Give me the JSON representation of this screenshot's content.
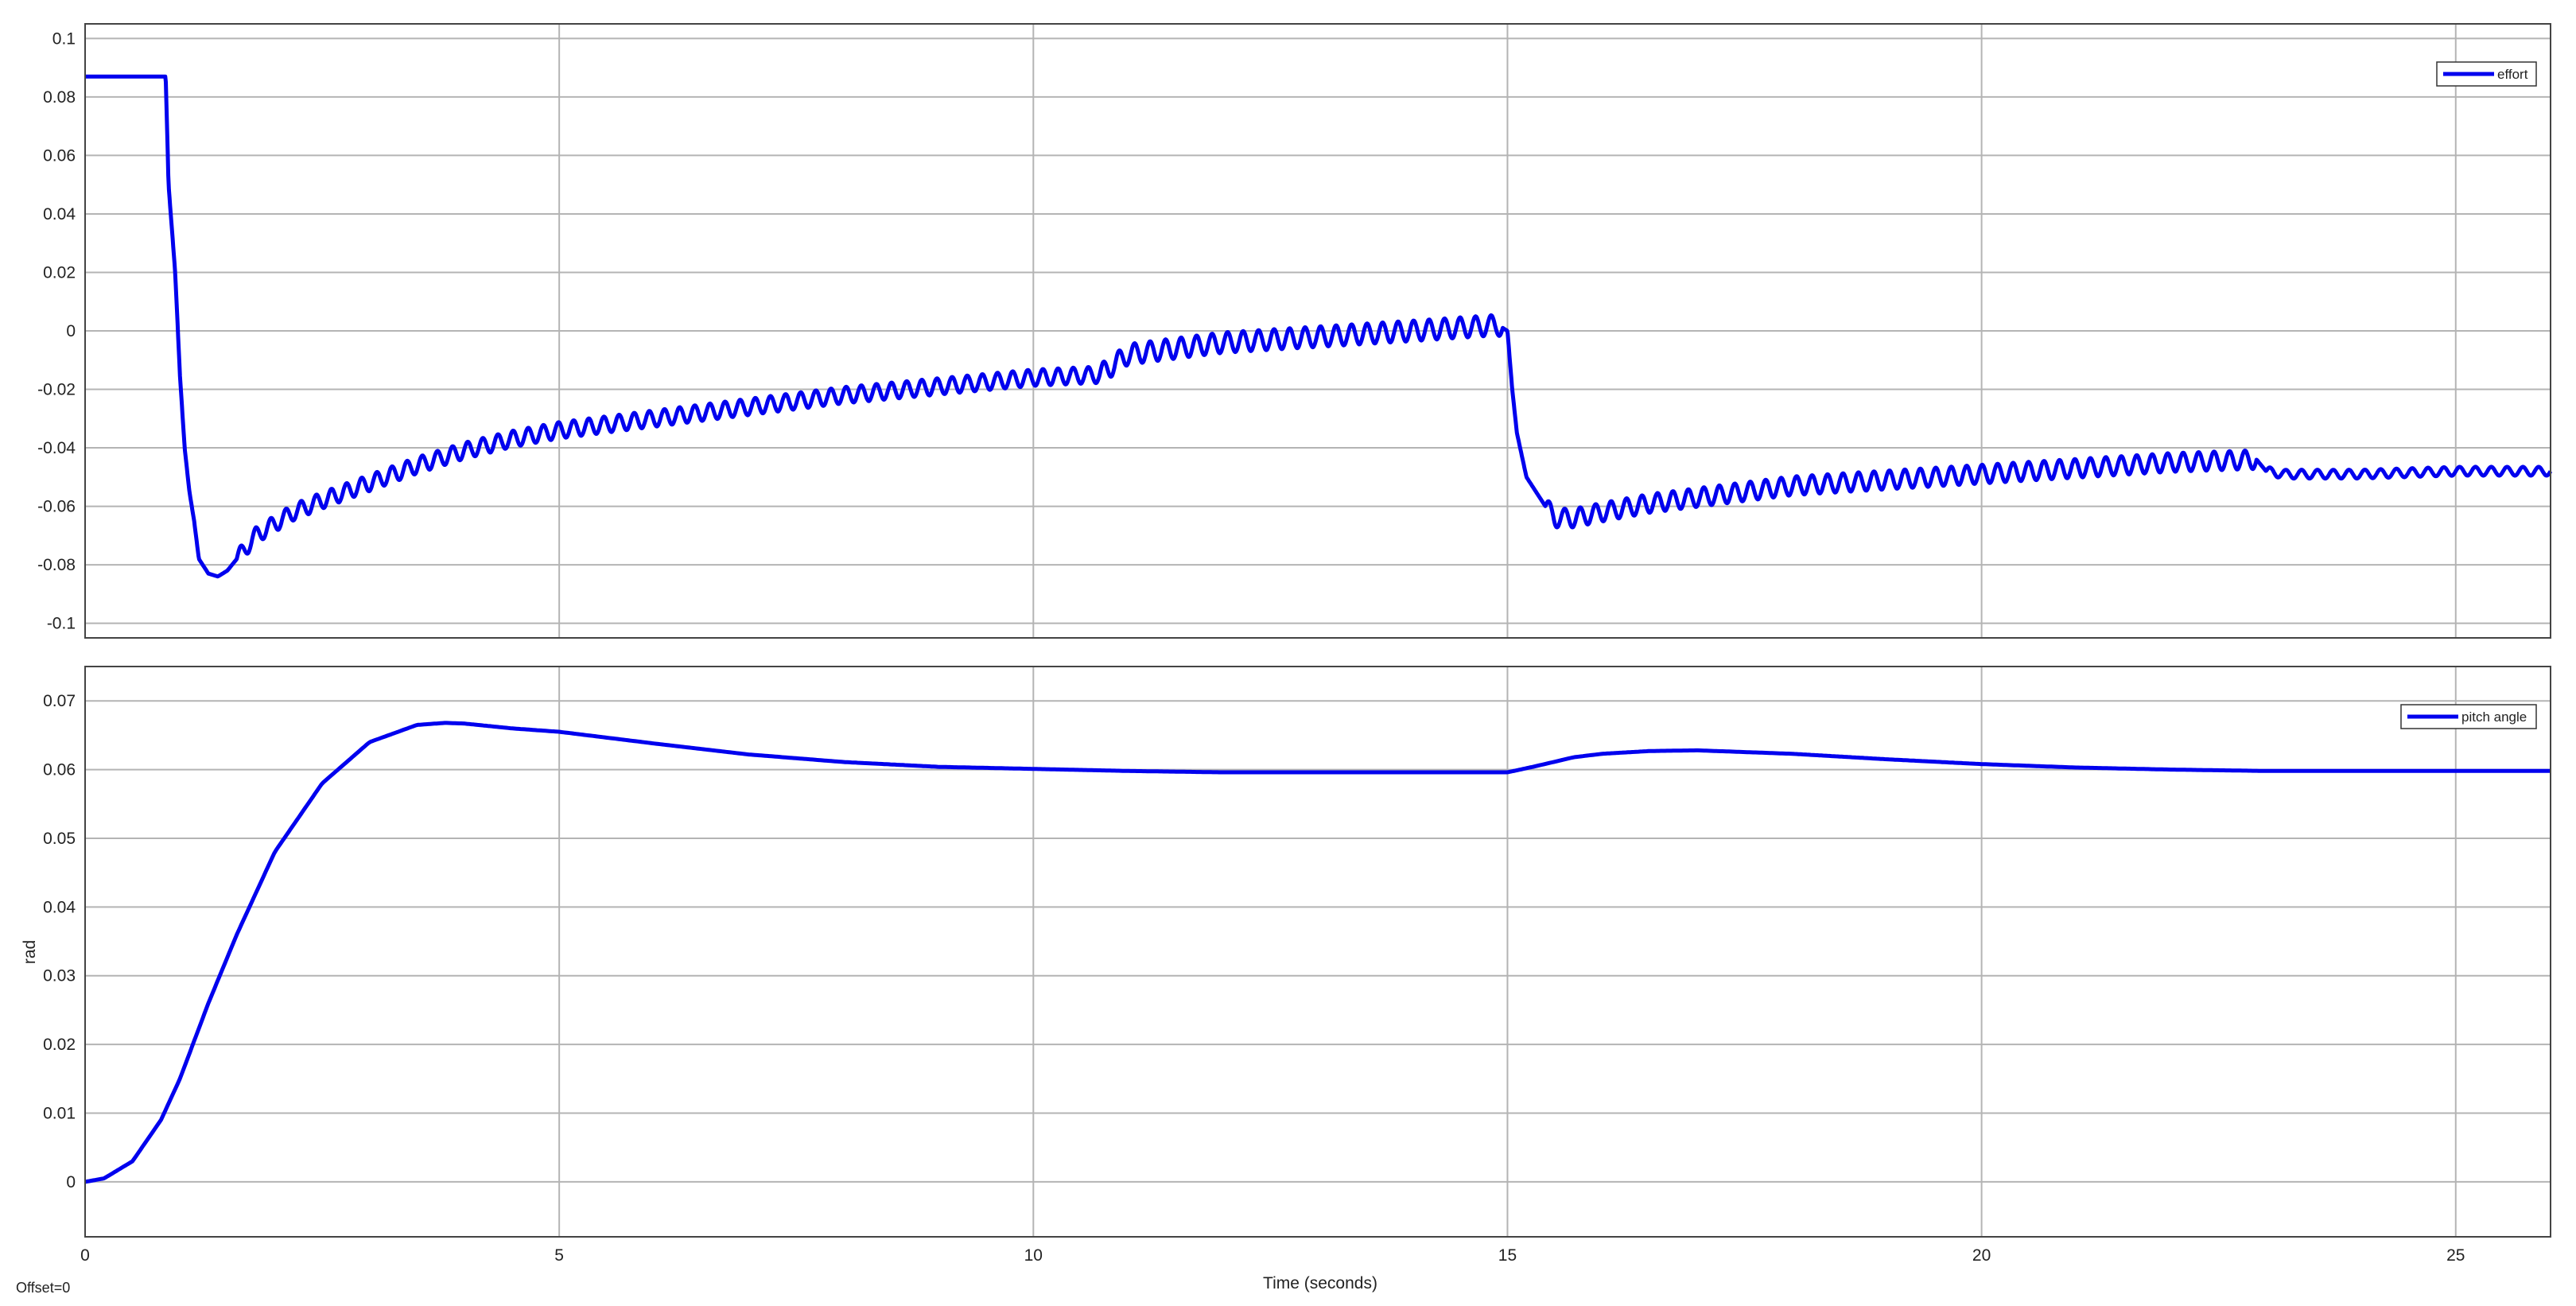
{
  "footer": {
    "offset_text": "Offset=0"
  },
  "colors": {
    "line": "#0000ee",
    "grid": "#b4b4b4",
    "axes": "#444444",
    "background": "#ffffff"
  },
  "chart_data": [
    {
      "type": "line",
      "title": "",
      "xlabel": "",
      "ylabel": "",
      "xlim": [
        0,
        26
      ],
      "ylim": [
        -0.105,
        0.105
      ],
      "xticks": [
        0,
        5,
        10,
        15,
        20,
        25
      ],
      "xtick_labels": [
        "",
        "",
        "",
        "",
        "",
        ""
      ],
      "yticks": [
        -0.1,
        -0.08,
        -0.06,
        -0.04,
        -0.02,
        0,
        0.02,
        0.04,
        0.06,
        0.08,
        0.1
      ],
      "ytick_labels": [
        "-0.1",
        "-0.08",
        "-0.06",
        "-0.04",
        "-0.02",
        "0",
        "0.02",
        "0.04",
        "0.06",
        "0.08",
        "0.1"
      ],
      "grid": true,
      "legend": "top-right",
      "series": [
        {
          "name": "effort",
          "x": [
            0,
            0.85,
            0.88,
            0.95,
            1.0,
            1.05,
            1.1,
            1.15,
            1.2,
            1.3,
            1.4,
            1.5,
            1.6,
            1.7,
            1.8,
            2.0,
            2.2,
            2.5,
            3.0,
            3.5,
            4.0,
            4.5,
            5.0,
            6.0,
            7.0,
            8.0,
            9.0,
            10.0,
            10.7,
            11.0,
            12.0,
            13.0,
            14.0,
            14.9,
            15.0,
            15.05,
            15.1,
            15.2,
            15.3,
            15.4,
            15.5,
            15.7,
            16.0,
            16.5,
            17.0,
            18.0,
            19.0,
            20.0,
            21.0,
            22.0,
            22.9,
            23.0,
            23.2,
            24.0,
            25.0,
            26.0
          ],
          "y": [
            0.087,
            0.087,
            0.05,
            0.02,
            -0.015,
            -0.04,
            -0.055,
            -0.065,
            -0.078,
            -0.083,
            -0.084,
            -0.082,
            -0.078,
            -0.074,
            -0.07,
            -0.066,
            -0.062,
            -0.058,
            -0.052,
            -0.046,
            -0.041,
            -0.037,
            -0.034,
            -0.03,
            -0.026,
            -0.022,
            -0.019,
            -0.016,
            -0.015,
            -0.008,
            -0.004,
            -0.002,
            0,
            0.002,
            0,
            -0.02,
            -0.035,
            -0.05,
            -0.055,
            -0.06,
            -0.064,
            -0.064,
            -0.062,
            -0.059,
            -0.057,
            -0.053,
            -0.051,
            -0.049,
            -0.047,
            -0.045,
            -0.044,
            -0.048,
            -0.049,
            -0.049,
            -0.048,
            -0.048
          ],
          "oscillation": [
            {
              "x_start": 1.6,
              "x_end": 10.7,
              "amplitude": 0.0028,
              "cycles": 57
            },
            {
              "x_start": 10.7,
              "x_end": 14.95,
              "amplitude": 0.0035,
              "cycles": 26
            },
            {
              "x_start": 15.4,
              "x_end": 22.9,
              "amplitude": 0.0032,
              "cycles": 46
            },
            {
              "x_start": 23.0,
              "x_end": 26.0,
              "amplitude": 0.0015,
              "cycles": 18
            }
          ]
        }
      ]
    },
    {
      "type": "line",
      "title": "",
      "xlabel": "Time (seconds)",
      "ylabel": "rad",
      "xlim": [
        0,
        26
      ],
      "ylim": [
        -0.008,
        0.075
      ],
      "xticks": [
        0,
        5,
        10,
        15,
        20,
        25
      ],
      "xtick_labels": [
        "0",
        "5",
        "10",
        "15",
        "20",
        "25"
      ],
      "yticks": [
        0,
        0.01,
        0.02,
        0.03,
        0.04,
        0.05,
        0.06,
        0.07
      ],
      "ytick_labels": [
        "0",
        "0.01",
        "0.02",
        "0.03",
        "0.04",
        "0.05",
        "0.06",
        "0.07"
      ],
      "grid": true,
      "legend": "top-right",
      "series": [
        {
          "name": "pitch angle",
          "x": [
            0,
            0.2,
            0.5,
            0.8,
            1.0,
            1.3,
            1.6,
            2.0,
            2.5,
            3.0,
            3.5,
            3.8,
            4.0,
            4.5,
            5.0,
            6.0,
            7.0,
            8.0,
            9.0,
            10.0,
            11.0,
            12.0,
            13.0,
            14.0,
            14.5,
            15.0,
            15.3,
            15.7,
            16.0,
            16.5,
            17.0,
            18.0,
            19.0,
            20.0,
            21.0,
            22.0,
            23.0,
            24.0,
            25.0,
            26.0
          ],
          "y": [
            0,
            0.0005,
            0.003,
            0.009,
            0.015,
            0.026,
            0.036,
            0.048,
            0.058,
            0.064,
            0.0665,
            0.0668,
            0.0667,
            0.066,
            0.0655,
            0.0638,
            0.0622,
            0.0611,
            0.0604,
            0.0601,
            0.0598,
            0.0596,
            0.0596,
            0.0596,
            0.0596,
            0.0596,
            0.0605,
            0.0618,
            0.0623,
            0.0627,
            0.0628,
            0.0623,
            0.0615,
            0.0608,
            0.0603,
            0.06,
            0.0598,
            0.0598,
            0.0598,
            0.0598
          ]
        }
      ]
    }
  ]
}
